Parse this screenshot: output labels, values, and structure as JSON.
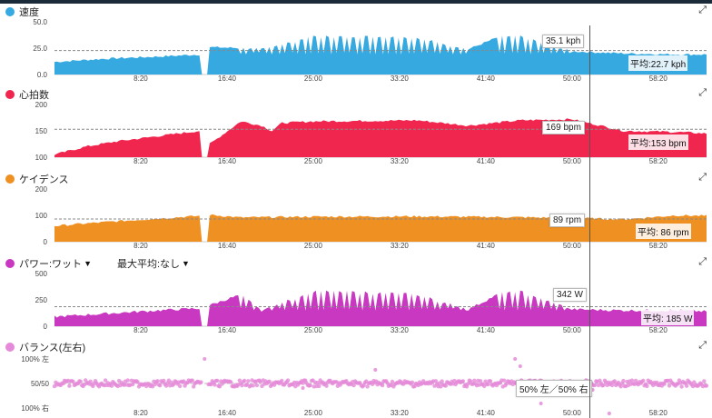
{
  "cursor_label_time": "",
  "panels": {
    "speed": {
      "title": "速度",
      "color": "#36a9e1",
      "callout": "35.1 kph",
      "avg": "平均:22.7 kph",
      "yticks": [
        "50.0",
        "25.0",
        "0.0"
      ]
    },
    "hr": {
      "title": "心拍数",
      "color": "#f0264f",
      "callout": "169 bpm",
      "avg": "平均:153 bpm",
      "yticks": [
        "200",
        "150",
        "100"
      ]
    },
    "cadence": {
      "title": "ケイデンス",
      "color": "#ef9022",
      "callout": "89 rpm",
      "avg": "平均: 86 rpm",
      "yticks": [
        "200",
        "100",
        "0"
      ]
    },
    "power": {
      "title": "パワー:ワット",
      "dropdown2": "最大平均:なし",
      "color": "#c838c0",
      "callout": "342 W",
      "avg": "平均: 185 W",
      "yticks": [
        "500",
        "250",
        "0"
      ]
    },
    "balance": {
      "title": "バランス(左右)",
      "color": "#e58ad8",
      "callout": "50% 左／50% 右",
      "yticks": [
        "100% 左",
        "50/50",
        "100% 右"
      ]
    }
  },
  "xticks": [
    "8:20",
    "16:40",
    "25:00",
    "33:20",
    "41:40",
    "50:00",
    "58:20"
  ],
  "chart_data": [
    {
      "type": "area",
      "title": "速度",
      "ylim": [
        0,
        50
      ],
      "avg_line": 22.7,
      "cursor_value": 35.1,
      "series": [
        {
          "name": "速度",
          "x_minutes": [
            0,
            5,
            10,
            14,
            14.5,
            15,
            18,
            20,
            25,
            30,
            35,
            40,
            43,
            45,
            50,
            55,
            60,
            63
          ],
          "values": [
            12,
            15,
            17,
            19,
            0,
            26,
            25,
            24,
            36,
            36,
            35,
            24,
            36,
            36,
            22,
            20,
            19,
            19
          ]
        }
      ]
    },
    {
      "type": "area",
      "title": "心拍数",
      "ylim": [
        100,
        200
      ],
      "avg_line": 153,
      "cursor_value": 169,
      "series": [
        {
          "name": "心拍数",
          "x_minutes": [
            0,
            3,
            6,
            10,
            14,
            15,
            18,
            20,
            21,
            22,
            25,
            35,
            40,
            45,
            50,
            55,
            60,
            63
          ],
          "values": [
            105,
            120,
            130,
            140,
            150,
            125,
            168,
            160,
            150,
            165,
            168,
            170,
            160,
            170,
            172,
            150,
            148,
            145
          ]
        }
      ]
    },
    {
      "type": "area",
      "title": "ケイデンス",
      "ylim": [
        0,
        200
      ],
      "avg_line": 86,
      "cursor_value": 89,
      "series": [
        {
          "name": "ケイデンス",
          "x_minutes": [
            0,
            5,
            10,
            14,
            14.5,
            15,
            18,
            25,
            35,
            45,
            50,
            55,
            60,
            63
          ],
          "values": [
            60,
            75,
            88,
            98,
            0,
            102,
            92,
            95,
            96,
            93,
            90,
            85,
            100,
            98
          ]
        }
      ]
    },
    {
      "type": "area",
      "title": "パワー:ワット",
      "ylim": [
        0,
        500
      ],
      "avg_line": 185,
      "cursor_value": 342,
      "series": [
        {
          "name": "パワー:ワット",
          "x_minutes": [
            0,
            5,
            10,
            14,
            14.5,
            15,
            18,
            20,
            25,
            30,
            35,
            40,
            43,
            45,
            50,
            55,
            60,
            63
          ],
          "values": [
            90,
            120,
            150,
            170,
            0,
            200,
            300,
            150,
            330,
            320,
            300,
            160,
            310,
            330,
            160,
            150,
            150,
            140
          ]
        }
      ]
    },
    {
      "type": "scatter",
      "title": "バランス(左右)",
      "ylim": [
        "100% 右",
        "100% 左"
      ],
      "cursor_value": "50% 左／50% 右",
      "series": [
        {
          "name": "バランス(左右)",
          "values_center": 50
        }
      ]
    }
  ]
}
